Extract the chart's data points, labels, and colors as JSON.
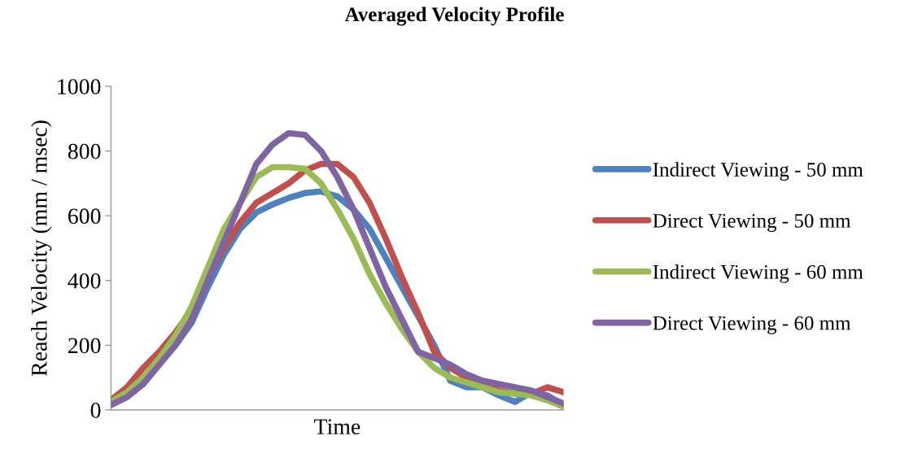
{
  "chart_data": {
    "type": "line",
    "title": "Averaged Velocity Profile",
    "xlabel": "Time",
    "ylabel": "Reach Velocity (mm / msec)",
    "categories": [
      null,
      null,
      null,
      null,
      null,
      null,
      null,
      null,
      null,
      null,
      null,
      null,
      null,
      null,
      null,
      null,
      null,
      null,
      null,
      null,
      null,
      null,
      null,
      null,
      null,
      null,
      null,
      null,
      null
    ],
    "ylim": [
      0,
      1000
    ],
    "yticks": [
      0,
      200,
      400,
      600,
      800,
      1000
    ],
    "grid": false,
    "legend": "right",
    "marker": "none",
    "line_style": "solid",
    "series": [
      {
        "name": "Indirect Viewing - 50 mm",
        "color": "#4f81bd",
        "values": [
          null,
          null,
          100,
          150,
          200,
          270,
          380,
          480,
          560,
          610,
          635,
          655,
          670,
          675,
          660,
          620,
          560,
          470,
          380,
          290,
          200,
          90,
          70,
          70,
          45,
          25,
          55,
          45,
          15
        ]
      },
      {
        "name": "Direct Viewing - 50 mm",
        "color": "#c0504d",
        "values": [
          30,
          70,
          130,
          180,
          240,
          310,
          410,
          500,
          580,
          640,
          670,
          700,
          740,
          760,
          760,
          720,
          640,
          530,
          410,
          300,
          180,
          130,
          100,
          80,
          60,
          50,
          50,
          70,
          55
        ]
      },
      {
        "name": "Indirect Viewing - 60 mm",
        "color": "#9bbb59",
        "values": [
          25,
          55,
          100,
          160,
          230,
          320,
          440,
          560,
          640,
          720,
          750,
          750,
          745,
          700,
          620,
          530,
          420,
          330,
          250,
          180,
          130,
          100,
          85,
          70,
          55,
          50,
          45,
          30,
          10
        ]
      },
      {
        "name": "Direct Viewing - 60 mm",
        "color": "#8064a2",
        "values": [
          15,
          40,
          80,
          140,
          200,
          280,
          400,
          520,
          640,
          760,
          820,
          855,
          850,
          800,
          720,
          620,
          500,
          380,
          280,
          180,
          160,
          140,
          110,
          90,
          80,
          70,
          60,
          40,
          20
        ]
      }
    ]
  }
}
